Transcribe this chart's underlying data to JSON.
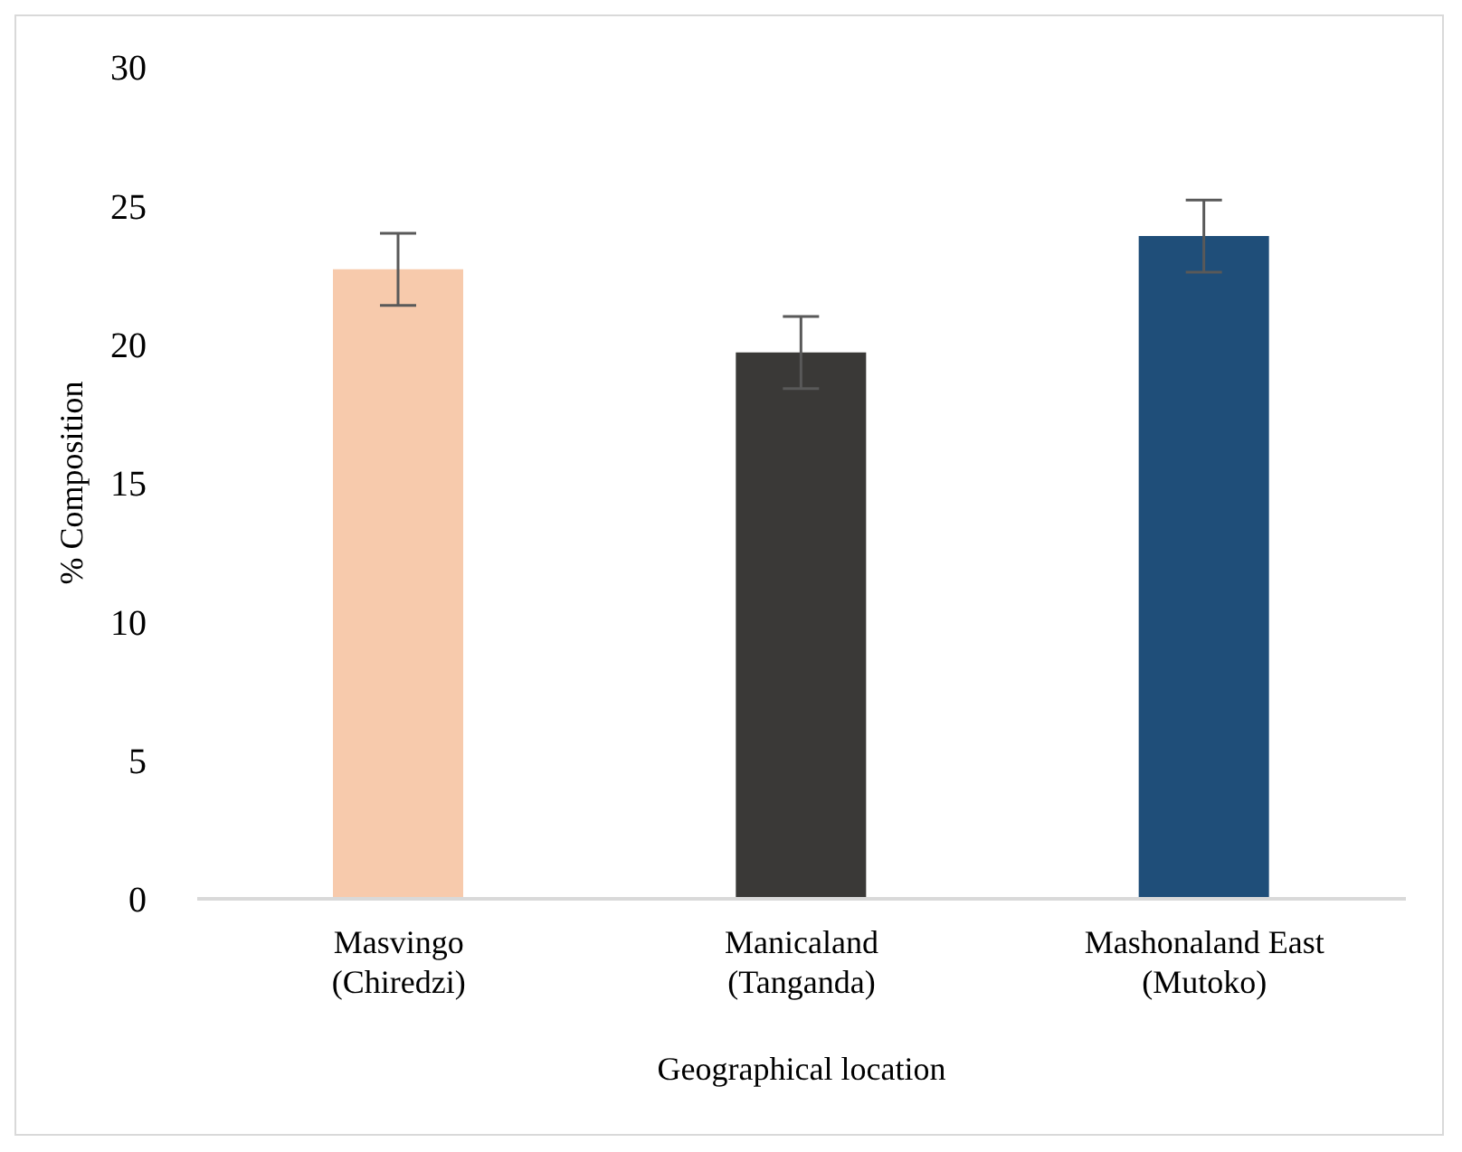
{
  "chart_data": {
    "type": "bar",
    "xlabel": "Geographical location",
    "ylabel": "% Composition",
    "categories": [
      "Masvingo\n(Chiredzi)",
      "Manicaland\n(Tanganda)",
      "Mashonaland East\n(Mutoko)"
    ],
    "values": [
      22.7,
      19.7,
      23.9
    ],
    "errors": [
      1.3,
      1.3,
      1.3
    ],
    "colors": [
      "#f7caac",
      "#3a3937",
      "#1f4e79"
    ],
    "ylim": [
      0,
      30
    ],
    "yticks": [
      0,
      5,
      10,
      15,
      20,
      25,
      30
    ],
    "grid": false,
    "legend": false
  }
}
